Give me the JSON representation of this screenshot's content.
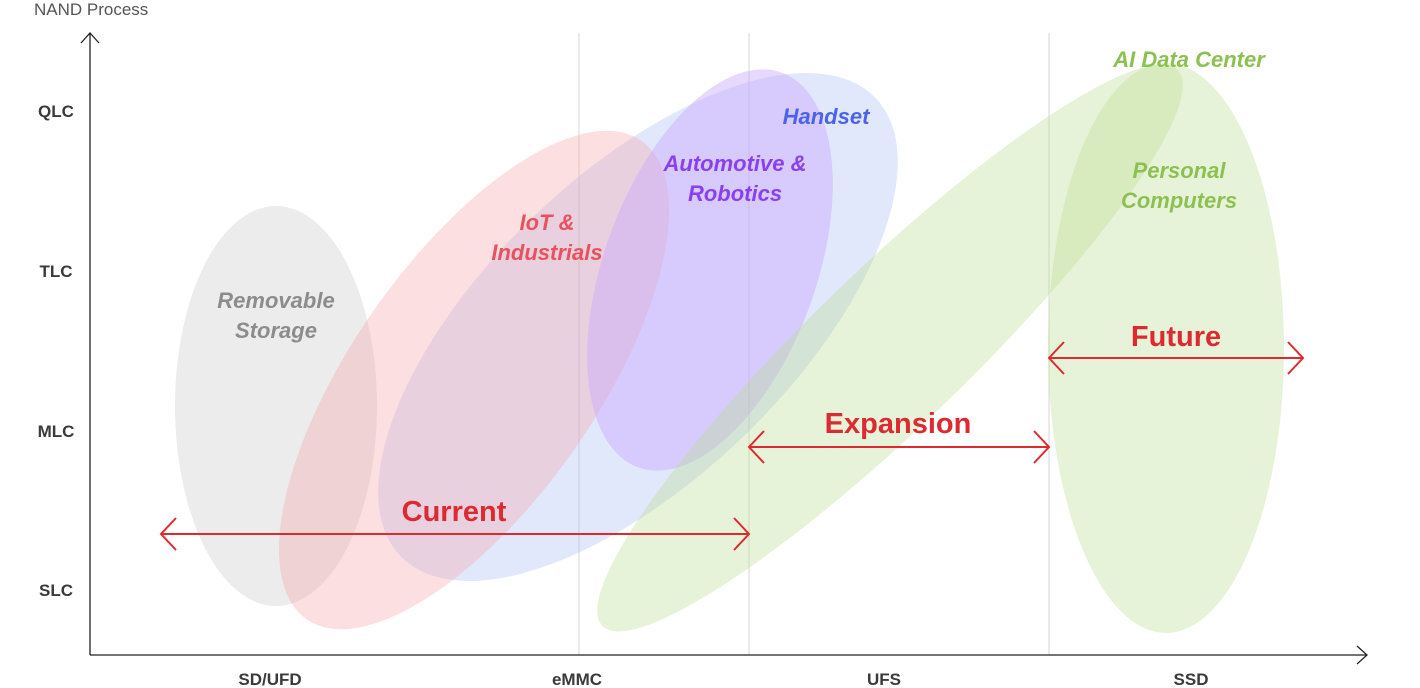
{
  "axis": {
    "y_title": "NAND Process"
  },
  "y_levels": [
    "QLC",
    "TLC",
    "MLC",
    "SLC"
  ],
  "x_categories": [
    "SD/UFD",
    "eMMC",
    "UFS",
    "SSD"
  ],
  "segments": {
    "removable": {
      "line1": "Removable",
      "line2": "Storage",
      "color": "#8c8c8c"
    },
    "iot": {
      "line1": "IoT &",
      "line2": "Industrials",
      "color": "#e8525f"
    },
    "automotive": {
      "line1": "Automotive &",
      "line2": "Robotics",
      "color": "#8a3ff0"
    },
    "handset": {
      "line1": "Handset",
      "color": "#4a63e8"
    },
    "ai": {
      "line1": "AI Data Center",
      "color": "#8cc152"
    },
    "pc": {
      "line1": "Personal",
      "line2": "Computers",
      "color": "#8cc152"
    }
  },
  "phases": {
    "current": "Current",
    "expansion": "Expansion",
    "future": "Future",
    "color": "#dd2a30"
  }
}
